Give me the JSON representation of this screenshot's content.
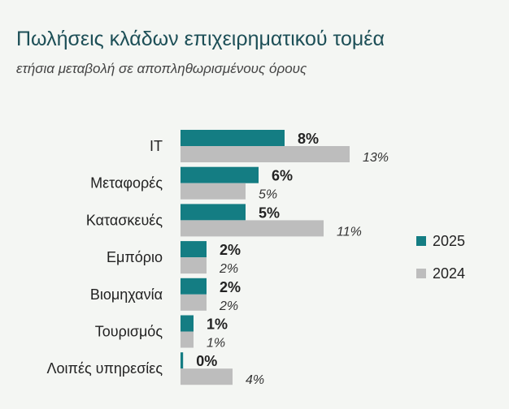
{
  "header": {
    "title": "Πωλήσεις κλάδων επιχειρηματικού τομέα",
    "subtitle": "ετήσια μεταβολή σε αποπληθωρισμένους όρους"
  },
  "colors": {
    "s2025": "#147d83",
    "s2024": "#bdbdbd"
  },
  "chart_data": {
    "type": "bar",
    "orientation": "horizontal",
    "title": "Πωλήσεις κλάδων επιχειρηματικού τομέα",
    "subtitle": "ετήσια μεταβολή σε αποπληθωρισμένους όρους",
    "categories": [
      "IT",
      "Μεταφορές",
      "Κατασκευές",
      "Εμπόριο",
      "Βιομηχανία",
      "Τουρισμός",
      "Λοιπές υπηρεσίες"
    ],
    "series": [
      {
        "name": "2025",
        "values": [
          8,
          6,
          5,
          2,
          2,
          1,
          0.2
        ],
        "labels": [
          "8%",
          "6%",
          "5%",
          "2%",
          "2%",
          "1%",
          "0%"
        ]
      },
      {
        "name": "2024",
        "values": [
          13,
          5,
          11,
          2,
          2,
          1,
          4
        ],
        "labels": [
          "13%",
          "5%",
          "11%",
          "2%",
          "2%",
          "1%",
          "4%"
        ]
      }
    ],
    "xlim": [
      0,
      13
    ],
    "legend": "right",
    "grid": false
  }
}
